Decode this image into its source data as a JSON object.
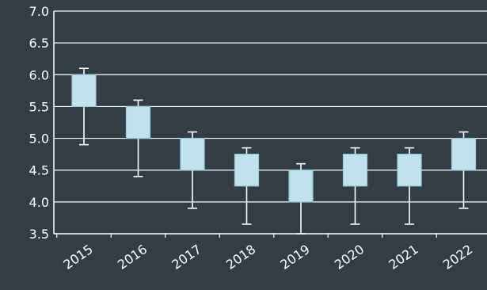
{
  "chart_data": {
    "type": "box",
    "title": "",
    "xlabel": "",
    "ylabel": "",
    "ylim": [
      3.5,
      7.0
    ],
    "yticks": [
      "3.5",
      "4.0",
      "4.5",
      "5.0",
      "5.5",
      "6.0",
      "6.5",
      "7.0"
    ],
    "grid": true,
    "legend": "none",
    "categories": [
      "2015",
      "2016",
      "2017",
      "2018",
      "2019",
      "2020",
      "2021",
      "2022"
    ],
    "boxes": [
      {
        "min": 4.9,
        "q1": 5.5,
        "q3": 6.0,
        "max": 6.1
      },
      {
        "min": 4.4,
        "q1": 5.0,
        "q3": 5.5,
        "max": 5.6
      },
      {
        "min": 3.9,
        "q1": 4.5,
        "q3": 5.0,
        "max": 5.1
      },
      {
        "min": 3.65,
        "q1": 4.25,
        "q3": 4.75,
        "max": 4.85
      },
      {
        "min": 3.5,
        "q1": 4.0,
        "q3": 4.5,
        "max": 4.6
      },
      {
        "min": 3.65,
        "q1": 4.25,
        "q3": 4.75,
        "max": 4.85
      },
      {
        "min": 3.65,
        "q1": 4.25,
        "q3": 4.75,
        "max": 4.85
      },
      {
        "min": 3.9,
        "q1": 4.5,
        "q3": 5.0,
        "max": 5.1
      }
    ],
    "colors": {
      "background": "#323d45",
      "box_fill": "#bfe3ee",
      "box_stroke": "#9fcad8",
      "whisker": "#ffffff",
      "grid": "#ffffff",
      "text": "#ffffff"
    }
  }
}
